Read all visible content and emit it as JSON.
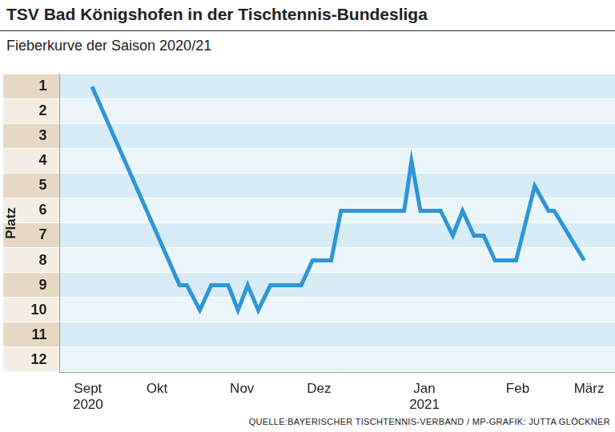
{
  "chart_data": {
    "type": "line",
    "title": "TSV Bad Königshofen in der Tischtennis-Bundesliga",
    "subtitle": "Fieberkurve der Saison 2020/21",
    "source": "QUELLE:BAYERISCHER TISCHTENNIS-VERBAND / MP-GRAFIK: JUTTA GLÖCKNER",
    "y_label": "Platz",
    "x": [
      40,
      148,
      157,
      173,
      187,
      208,
      220,
      232,
      245,
      260,
      298,
      312,
      335,
      347,
      425,
      434,
      445,
      470,
      485,
      497,
      511,
      523,
      537,
      563,
      586,
      603,
      610,
      647
    ],
    "values": [
      1,
      9,
      9,
      10,
      9,
      9,
      10,
      9,
      10,
      9,
      9,
      8,
      8,
      6,
      6,
      4,
      6,
      6,
      7,
      6,
      7,
      7,
      8,
      8,
      5,
      6,
      6,
      8
    ],
    "color": "#2f95d6",
    "xlim": [
      0,
      685
    ],
    "xticks": [
      {
        "value": 35,
        "label": "Sept\n2020"
      },
      {
        "value": 120,
        "label": "Okt"
      },
      {
        "value": 225,
        "label": "Nov"
      },
      {
        "value": 320,
        "label": "Dez"
      },
      {
        "value": 450,
        "label": "Jan\n2021"
      },
      {
        "value": 565,
        "label": "Feb"
      },
      {
        "value": 653,
        "label": "März"
      }
    ],
    "ylim": [
      12.5,
      0.5
    ],
    "yticks": [
      1,
      2,
      3,
      4,
      5,
      6,
      7,
      8,
      9,
      10,
      11,
      12
    ],
    "grid": true
  }
}
